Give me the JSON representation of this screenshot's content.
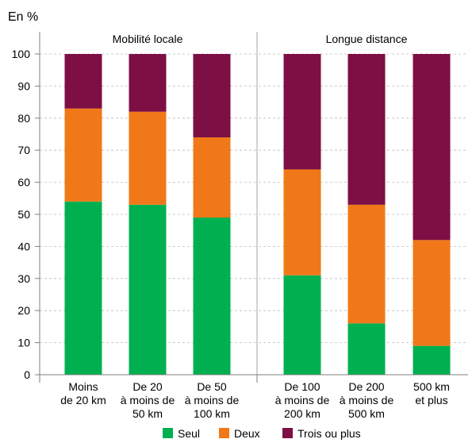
{
  "chart_data": {
    "type": "bar",
    "stacked": true,
    "unit_label": "En %",
    "groups": [
      {
        "label": "Mobilité locale",
        "categories": [
          0,
          1,
          2
        ]
      },
      {
        "label": "Longue distance",
        "categories": [
          3,
          4,
          5
        ]
      }
    ],
    "categories": [
      [
        "Moins",
        "de 20 km"
      ],
      [
        "De 20",
        "à moins de",
        "50 km"
      ],
      [
        "De 50",
        "à moins de",
        "100 km"
      ],
      [
        "De 100",
        "à moins de",
        "200 km"
      ],
      [
        "De 200",
        "à moins de",
        "500 km"
      ],
      [
        "500 km",
        "et plus"
      ]
    ],
    "series": [
      {
        "name": "Seul",
        "color": "#00b050",
        "values": [
          54,
          53,
          49,
          31,
          16,
          9
        ]
      },
      {
        "name": "Deux",
        "color": "#f07818",
        "values": [
          29,
          29,
          25,
          33,
          37,
          33
        ]
      },
      {
        "name": "Trois ou plus",
        "color": "#7d0f44",
        "values": [
          17,
          18,
          26,
          36,
          47,
          58
        ]
      }
    ],
    "ylim": [
      0,
      100
    ],
    "yticks": [
      0,
      10,
      20,
      30,
      40,
      50,
      60,
      70,
      80,
      90,
      100
    ],
    "grid": true,
    "legend": "bottom"
  }
}
